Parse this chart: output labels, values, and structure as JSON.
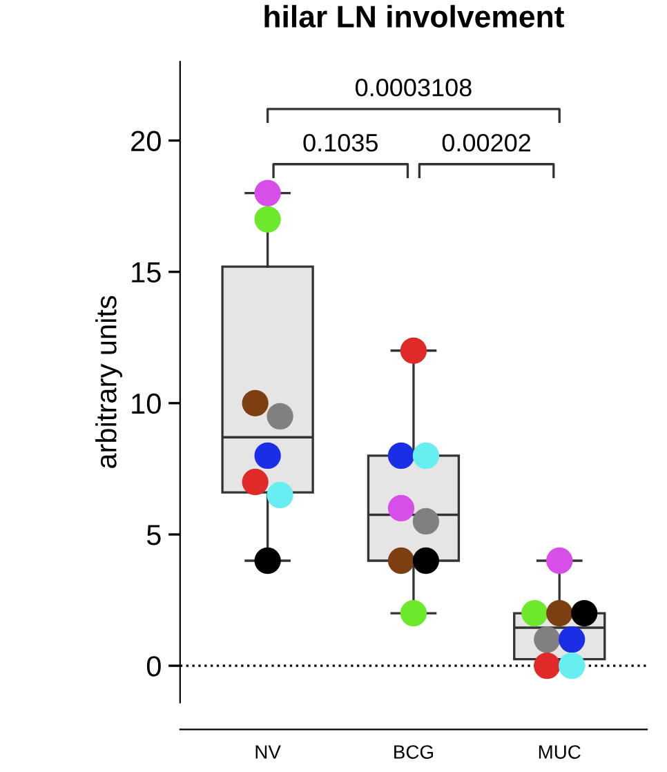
{
  "chart_data": {
    "type": "box",
    "title": "hilar LN involvement",
    "ylabel": "arbitrary units",
    "categories": [
      "NV",
      "BCG",
      "MUC"
    ],
    "boxes": [
      {
        "low": 4,
        "q1": 6.6,
        "median": 8.7,
        "q3": 15.2,
        "high": 18
      },
      {
        "low": 2,
        "q1": 4,
        "median": 5.75,
        "q3": 8,
        "high": 12
      },
      {
        "low": 0,
        "q1": 0.25,
        "median": 1.45,
        "q3": 2,
        "high": 4
      }
    ],
    "color": "#e5e5e5",
    "series": [
      {
        "type": "scatter",
        "x": [
          "NV",
          "BCG",
          "MUC"
        ],
        "color": "#d84ee8",
        "values": [
          18,
          6,
          4
        ]
      },
      {
        "type": "scatter",
        "x": [
          "NV",
          "BCG",
          "MUC"
        ],
        "color": "#6ee82a",
        "values": [
          17,
          2,
          2
        ]
      },
      {
        "type": "scatter",
        "x": [
          "NV",
          "BCG",
          "MUC"
        ],
        "color": "#7d3f12",
        "values": [
          10,
          4,
          2
        ]
      },
      {
        "type": "scatter",
        "x": [
          "NV",
          "BCG",
          "MUC"
        ],
        "color": "#808080",
        "values": [
          9.5,
          5.5,
          1
        ]
      },
      {
        "type": "scatter",
        "x": [
          "NV",
          "BCG",
          "MUC"
        ],
        "color": "#1a2ee6",
        "values": [
          8,
          8,
          1
        ]
      },
      {
        "type": "scatter",
        "x": [
          "NV",
          "BCG",
          "MUC"
        ],
        "color": "#e02a2a",
        "values": [
          7,
          12,
          0
        ]
      },
      {
        "type": "scatter",
        "x": [
          "NV",
          "BCG",
          "MUC"
        ],
        "color": "#66eef0",
        "values": [
          6.5,
          8,
          0
        ]
      },
      {
        "type": "scatter",
        "x": [
          "NV",
          "BCG",
          "MUC"
        ],
        "color": "#000000",
        "values": [
          4,
          4,
          2
        ]
      }
    ],
    "ylim": [
      -1.4,
      23
    ],
    "yticks": [
      0,
      5,
      10,
      15,
      20
    ],
    "grid": false,
    "ref_lines": [
      {
        "axis": "y",
        "value": 0,
        "line_style": "dotted",
        "color": "#000000"
      }
    ],
    "annotations": [
      "0.0003108",
      "0.1035",
      "0.00202"
    ]
  }
}
